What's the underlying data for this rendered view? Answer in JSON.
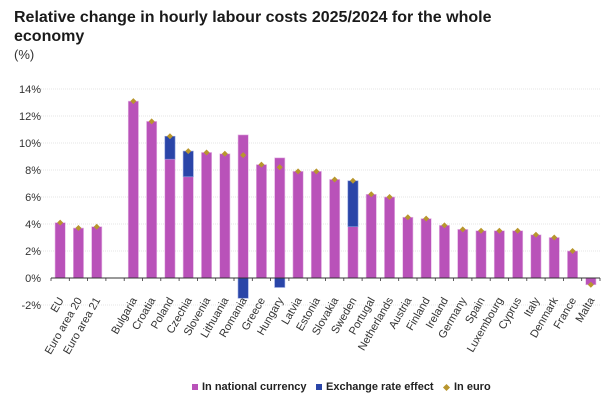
{
  "chart_data": {
    "type": "bar",
    "title": "Relative change in hourly labour costs 2025/2024 for the whole economy",
    "unit_label": "(%)",
    "xlabel": "",
    "ylabel": "%",
    "ylim": [
      -2,
      14
    ],
    "yticks": [
      -2,
      0,
      2,
      4,
      6,
      8,
      10,
      12,
      14
    ],
    "ytick_labels": [
      "-2%",
      "0%",
      "2%",
      "4%",
      "6%",
      "8%",
      "10%",
      "12%",
      "14%"
    ],
    "grid": true,
    "stacked": true,
    "legend_position": "bottom",
    "categories": [
      "EU",
      "Euro area 20",
      "Euro area 21",
      "",
      "Bulgaria",
      "Croatia",
      "Poland",
      "Czechia",
      "Slovenia",
      "Lithuania",
      "Romania",
      "Greece",
      "Hungary",
      "Latvia",
      "Estonia",
      "Slovakia",
      "Sweden",
      "Portugal",
      "Netherlands",
      "Austria",
      "Finland",
      "Ireland",
      "Germany",
      "Spain",
      "Luxembourg",
      "Cyprus",
      "Italy",
      "Denmark",
      "France",
      "Malta"
    ],
    "series": [
      {
        "name": "In national currency",
        "type": "bar",
        "color": "#b952b9",
        "values": [
          4.1,
          3.7,
          3.8,
          null,
          13.1,
          11.6,
          8.8,
          7.5,
          9.3,
          9.2,
          10.6,
          8.4,
          8.9,
          7.9,
          7.9,
          7.3,
          3.8,
          6.2,
          6.0,
          4.5,
          4.4,
          3.9,
          3.6,
          3.5,
          3.5,
          3.5,
          3.2,
          3.0,
          2.0,
          -0.5
        ]
      },
      {
        "name": "Exchange rate effect",
        "type": "bar",
        "color": "#2a45a8",
        "values": [
          null,
          null,
          null,
          null,
          null,
          null,
          1.7,
          1.9,
          null,
          null,
          -1.5,
          null,
          -0.7,
          null,
          null,
          null,
          3.4,
          null,
          null,
          null,
          null,
          null,
          null,
          null,
          null,
          null,
          null,
          null,
          null,
          null
        ]
      },
      {
        "name": "In euro",
        "type": "marker",
        "marker": "diamond",
        "color": "#b8962e",
        "values": [
          4.1,
          3.7,
          3.8,
          null,
          13.1,
          11.6,
          10.5,
          9.4,
          9.3,
          9.2,
          9.1,
          8.4,
          8.2,
          7.9,
          7.9,
          7.3,
          7.2,
          6.2,
          6.0,
          4.5,
          4.4,
          3.9,
          3.6,
          3.5,
          3.5,
          3.5,
          3.2,
          3.0,
          2.0,
          -0.5
        ]
      }
    ]
  }
}
